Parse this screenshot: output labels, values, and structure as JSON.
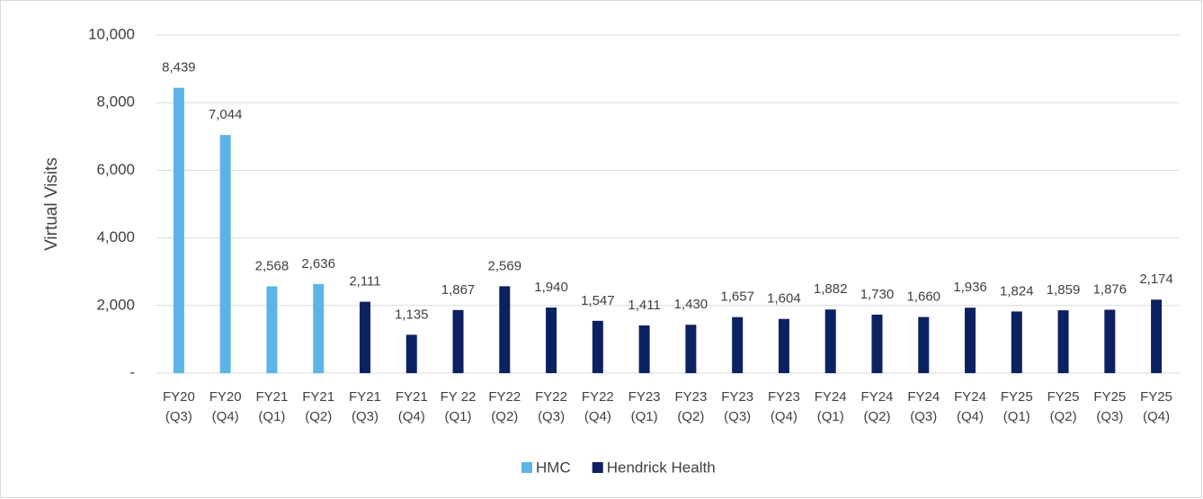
{
  "chart_data": {
    "type": "bar",
    "y_label": "Virtual Visits",
    "categories": [
      "FY20 (Q3)",
      "FY20 (Q4)",
      "FY21 (Q1)",
      "FY21 (Q2)",
      "FY21 (Q3)",
      "FY21 (Q4)",
      "FY 22 (Q1)",
      "FY22 (Q2)",
      "FY22 (Q3)",
      "FY22 (Q4)",
      "FY23 (Q1)",
      "FY23 (Q2)",
      "FY23 (Q3)",
      "FY23 (Q4)",
      "FY24 (Q1)",
      "FY24 (Q2)",
      "FY24 (Q3)",
      "FY24 (Q4)",
      "FY25 (Q1)",
      "FY25 (Q2)",
      "FY25 (Q3)",
      "FY25 (Q4)"
    ],
    "series": [
      {
        "name": "HMC",
        "color": "#5bb4e5",
        "values": [
          8439,
          7044,
          2568,
          2636,
          null,
          null,
          null,
          null,
          null,
          null,
          null,
          null,
          null,
          null,
          null,
          null,
          null,
          null,
          null,
          null,
          null,
          null
        ],
        "value_labels": [
          "8,439",
          "7,044",
          "2,568",
          "2,636",
          null,
          null,
          null,
          null,
          null,
          null,
          null,
          null,
          null,
          null,
          null,
          null,
          null,
          null,
          null,
          null,
          null,
          null
        ]
      },
      {
        "name": "Hendrick Health",
        "color": "#0b2161",
        "values": [
          null,
          null,
          null,
          null,
          2111,
          1135,
          1867,
          2569,
          1940,
          1547,
          1411,
          1430,
          1657,
          1604,
          1882,
          1730,
          1660,
          1936,
          1824,
          1859,
          1876,
          2174
        ],
        "value_labels": [
          null,
          null,
          null,
          null,
          "2,111",
          "1,135",
          "1,867",
          "2,569",
          "1,940",
          "1,547",
          "1,411",
          "1,430",
          "1,657",
          "1,604",
          "1,882",
          "1,730",
          "1,660",
          "1,936",
          "1,824",
          "1,859",
          "1,876",
          "2,174"
        ]
      }
    ],
    "ylim": [
      0,
      10000
    ],
    "yticks": [
      {
        "value": 0,
        "label": "-"
      },
      {
        "value": 2000,
        "label": "2,000"
      },
      {
        "value": 4000,
        "label": "4,000"
      },
      {
        "value": 6000,
        "label": "6,000"
      },
      {
        "value": 8000,
        "label": "8,000"
      },
      {
        "value": 10000,
        "label": "10,000"
      }
    ],
    "grid": true,
    "legend": "bottom"
  }
}
